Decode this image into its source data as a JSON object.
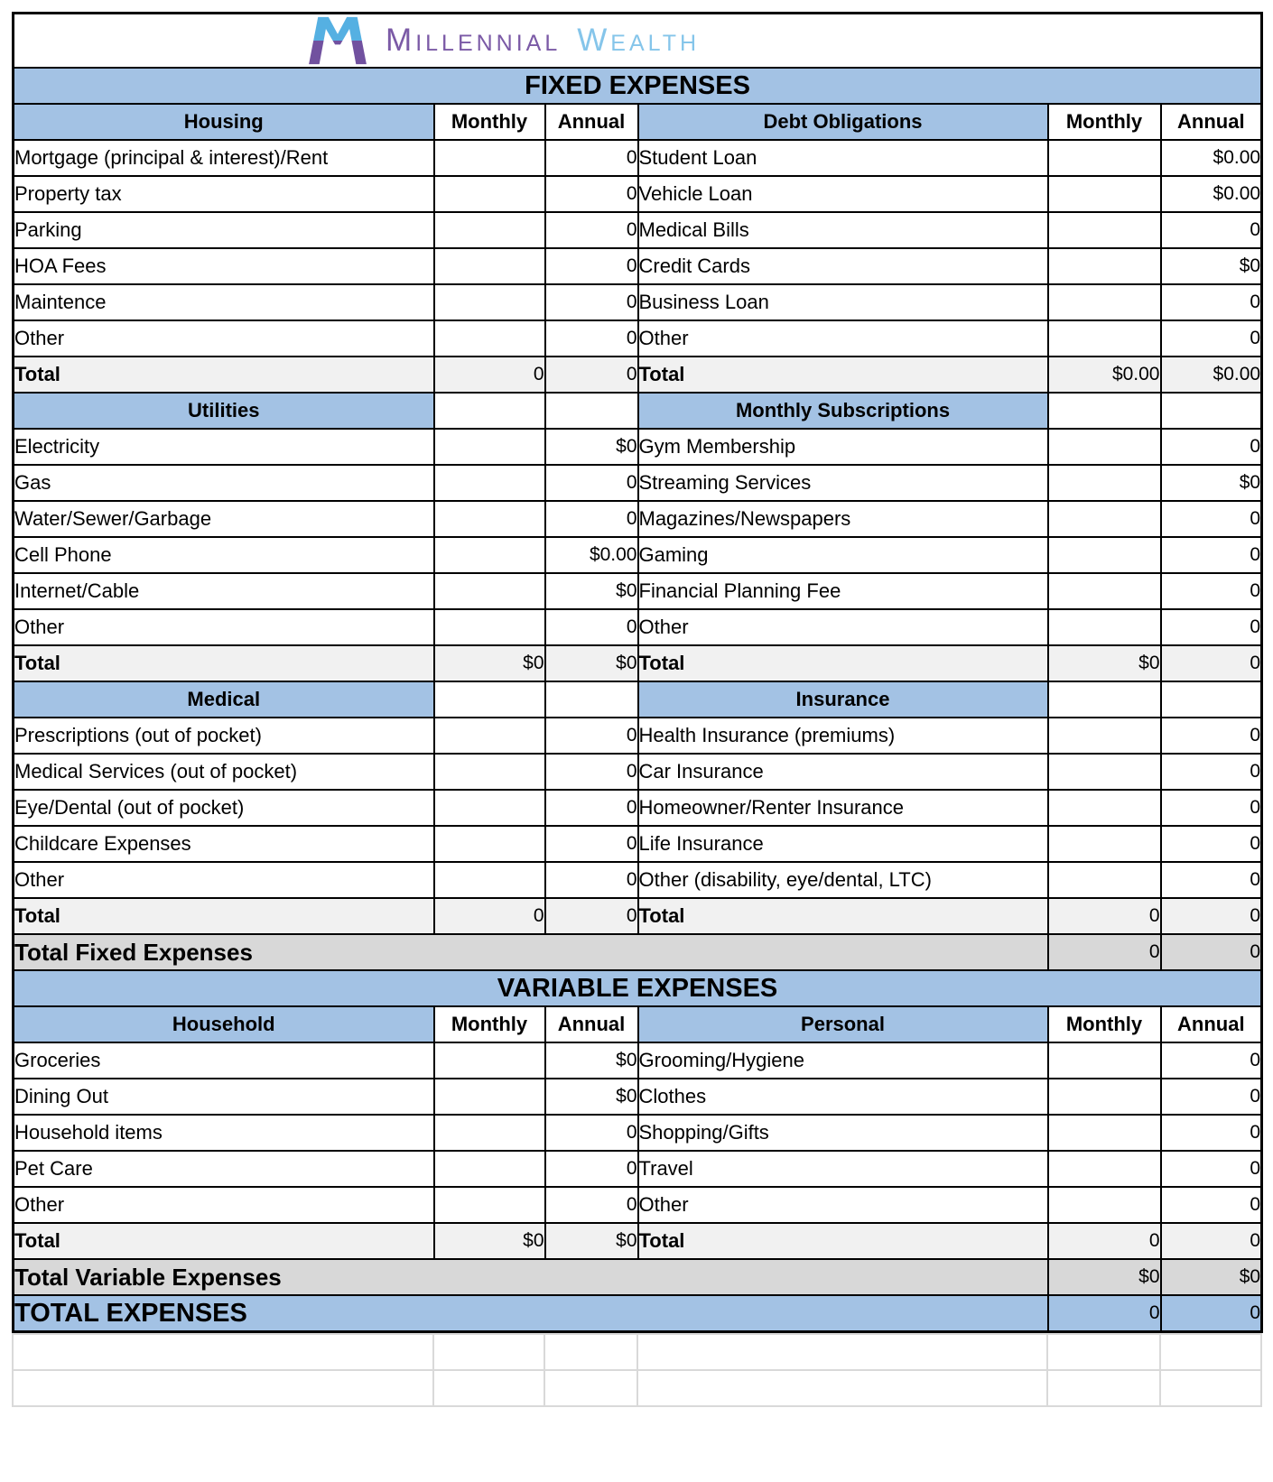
{
  "logo": {
    "brand_first": "Millennial",
    "brand_second": "Wealth",
    "icon": "butterfly-m-monogram"
  },
  "colors": {
    "header_blue": "#a3c2e4",
    "subtotal_gray": "#f1f1f1",
    "summary_gray": "#d8d8d8",
    "grid_black": "#000000",
    "empty_grid_gray": "#d9d9d9",
    "logo_purple": "#7b5aa6",
    "logo_light_blue": "#85c5ea",
    "mark_blue": "#55b0e2",
    "mark_purple": "#71519f"
  },
  "table": {
    "trailing_empty_rows": 2,
    "rows": [
      {
        "type": "band",
        "label": "FIXED EXPENSES"
      },
      {
        "type": "head",
        "cells": [
          "Housing",
          "Monthly",
          "Annual",
          "Debt Obligations",
          "Monthly",
          "Annual"
        ]
      },
      {
        "type": "item",
        "cells": [
          "Mortgage (principal & interest)/Rent",
          "",
          "0",
          "Student Loan",
          "",
          "$0.00"
        ]
      },
      {
        "type": "item",
        "cells": [
          "Property tax",
          "",
          "0",
          "Vehicle Loan",
          "",
          "$0.00"
        ]
      },
      {
        "type": "item",
        "cells": [
          "Parking",
          "",
          "0",
          "Medical Bills",
          "",
          "0"
        ]
      },
      {
        "type": "item",
        "cells": [
          "HOA Fees",
          "",
          "0",
          "Credit Cards",
          "",
          "$0"
        ]
      },
      {
        "type": "item",
        "cells": [
          "Maintence",
          "",
          "0",
          "Business Loan",
          "",
          "0"
        ]
      },
      {
        "type": "item",
        "cells": [
          "Other",
          "",
          "0",
          "Other",
          "",
          "0"
        ]
      },
      {
        "type": "total",
        "cells": [
          "Total",
          "0",
          "0",
          "Total",
          "$0.00",
          "$0.00"
        ]
      },
      {
        "type": "sub",
        "cells": [
          "Utilities",
          "",
          "",
          "Monthly Subscriptions",
          "",
          ""
        ]
      },
      {
        "type": "item",
        "cells": [
          "Electricity",
          "",
          "$0",
          "Gym Membership",
          "",
          "0"
        ]
      },
      {
        "type": "item",
        "cells": [
          "Gas",
          "",
          "0",
          "Streaming Services",
          "",
          "$0"
        ]
      },
      {
        "type": "item",
        "cells": [
          "Water/Sewer/Garbage",
          "",
          "0",
          "Magazines/Newspapers",
          "",
          "0"
        ]
      },
      {
        "type": "item",
        "cells": [
          "Cell Phone",
          "",
          "$0.00",
          "Gaming",
          "",
          "0"
        ]
      },
      {
        "type": "item",
        "cells": [
          "Internet/Cable",
          "",
          "$0",
          "Financial Planning Fee",
          "",
          "0"
        ]
      },
      {
        "type": "item",
        "cells": [
          "Other",
          "",
          "0",
          "Other",
          "",
          "0"
        ]
      },
      {
        "type": "total",
        "cells": [
          "Total",
          "$0",
          "$0",
          "Total",
          "$0",
          "0"
        ]
      },
      {
        "type": "sub",
        "cells": [
          "Medical",
          "",
          "",
          "Insurance",
          "",
          ""
        ]
      },
      {
        "type": "item",
        "cells": [
          "Prescriptions (out of pocket)",
          "",
          "0",
          "Health Insurance (premiums)",
          "",
          "0"
        ]
      },
      {
        "type": "item",
        "cells": [
          "Medical Services (out of pocket)",
          "",
          "0",
          "Car Insurance",
          "",
          "0"
        ]
      },
      {
        "type": "item",
        "cells": [
          "Eye/Dental (out of pocket)",
          "",
          "0",
          "Homeowner/Renter Insurance",
          "",
          "0"
        ]
      },
      {
        "type": "item",
        "cells": [
          "Childcare Expenses",
          "",
          "0",
          "Life Insurance",
          "",
          "0"
        ]
      },
      {
        "type": "item",
        "cells": [
          "Other",
          "",
          "0",
          "Other (disability, eye/dental, LTC)",
          "",
          "0"
        ]
      },
      {
        "type": "total",
        "cells": [
          "Total",
          "0",
          "0",
          "Total",
          "0",
          "0"
        ]
      },
      {
        "type": "grand_gray",
        "label": "Total Fixed Expenses",
        "monthly": "0",
        "annual": "0"
      },
      {
        "type": "band",
        "label": "VARIABLE EXPENSES"
      },
      {
        "type": "head",
        "cells": [
          "Household",
          "Monthly",
          "Annual",
          "Personal",
          "Monthly",
          "Annual"
        ]
      },
      {
        "type": "item",
        "cells": [
          "Groceries",
          "",
          "$0",
          "Grooming/Hygiene",
          "",
          "0"
        ]
      },
      {
        "type": "item",
        "cells": [
          "Dining Out",
          "",
          "$0",
          "Clothes",
          "",
          "0"
        ]
      },
      {
        "type": "item",
        "cells": [
          "Household items",
          "",
          "0",
          "Shopping/Gifts",
          "",
          "0"
        ]
      },
      {
        "type": "item",
        "cells": [
          "Pet Care",
          "",
          "0",
          "Travel",
          "",
          "0"
        ]
      },
      {
        "type": "item",
        "cells": [
          "Other",
          "",
          "0",
          "Other",
          "",
          "0"
        ]
      },
      {
        "type": "total",
        "cells": [
          "Total",
          "$0",
          "$0",
          "Total",
          "0",
          "0"
        ]
      },
      {
        "type": "grand_gray",
        "label": "Total Variable Expenses",
        "monthly": "$0",
        "annual": "$0"
      },
      {
        "type": "grand_blue",
        "label": "TOTAL EXPENSES",
        "monthly": "0",
        "annual": "0"
      }
    ]
  }
}
